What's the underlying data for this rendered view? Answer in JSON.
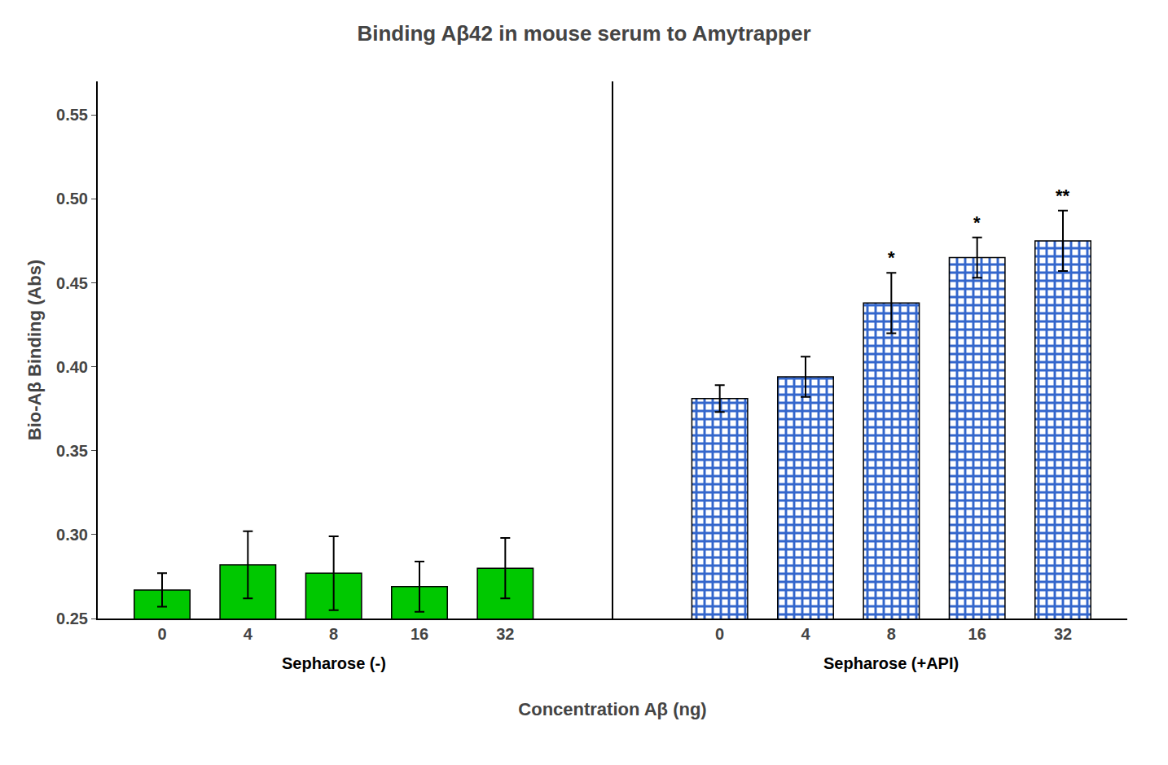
{
  "chart_data": {
    "type": "bar",
    "title": "Binding Aβ42 in mouse serum to Amytrapper",
    "ylabel": "Bio-Aβ Binding (Abs)",
    "xlabel": "Concentration Aβ (ng)",
    "categories": [
      "0",
      "4",
      "8",
      "16",
      "32"
    ],
    "series": [
      {
        "name": "Sepharose (-)",
        "color": "#00C800",
        "values": [
          0.267,
          0.282,
          0.277,
          0.269,
          0.28
        ],
        "errors": [
          0.01,
          0.02,
          0.022,
          0.015,
          0.018
        ]
      },
      {
        "name": "Sepharose (+API)",
        "color": "#3366CC",
        "values": [
          0.381,
          0.394,
          0.438,
          0.465,
          0.475
        ],
        "errors": [
          0.008,
          0.012,
          0.018,
          0.012,
          0.018
        ],
        "annotations": [
          null,
          null,
          "*",
          "*",
          "**"
        ]
      }
    ],
    "ylim": [
      0.25,
      0.57
    ],
    "yticks": [
      0.25,
      {
        "value": 0.3,
        "label": "0.30"
      },
      0.35,
      {
        "value": 0.4,
        "label": "0.40"
      },
      0.45,
      {
        "value": 0.5,
        "label": "0.50"
      },
      0.55
    ],
    "grid": false
  }
}
